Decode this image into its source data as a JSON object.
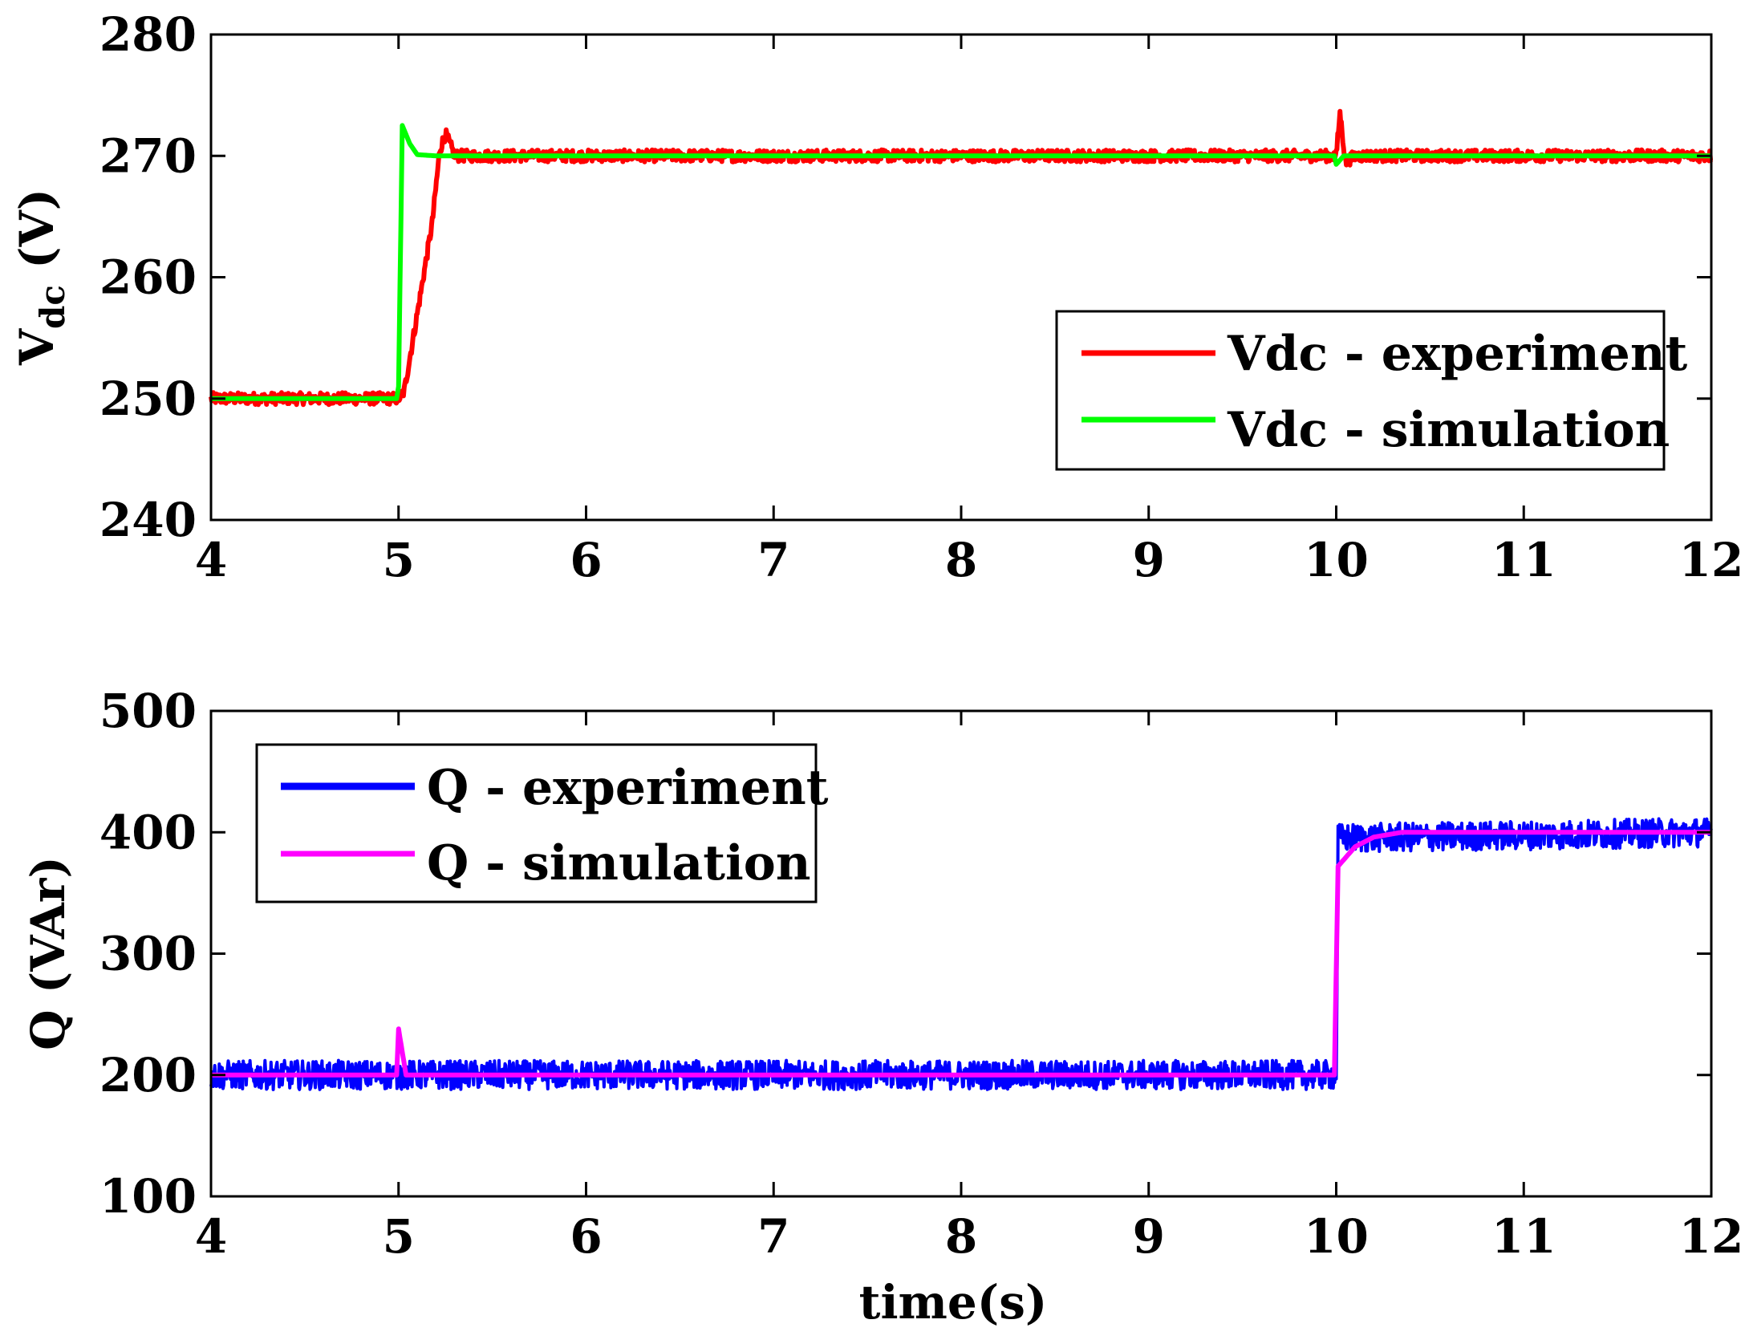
{
  "chart_data": [
    {
      "type": "line",
      "xlim": [
        4,
        12
      ],
      "ylim": [
        240,
        280
      ],
      "xticks": [
        4,
        5,
        6,
        7,
        8,
        9,
        10,
        11,
        12
      ],
      "yticks": [
        240,
        250,
        260,
        270,
        280
      ],
      "ylabel_main": "V",
      "ylabel_sub": "dc",
      "ylabel_unit": " (V)",
      "xlabel": "",
      "legend_position": "center-right",
      "series": [
        {
          "name": "Vdc - experiment",
          "color": "#ff0000",
          "noise": 0.5,
          "points": [
            [
              4,
              250
            ],
            [
              5.0,
              250
            ],
            [
              5.03,
              250.6
            ],
            [
              5.1,
              257
            ],
            [
              5.18,
              264.5
            ],
            [
              5.22,
              270.5
            ],
            [
              5.25,
              271.8
            ],
            [
              5.3,
              270
            ],
            [
              10.0,
              270
            ],
            [
              10.02,
              273.5
            ],
            [
              10.05,
              269.5
            ],
            [
              10.1,
              270
            ],
            [
              12,
              270
            ]
          ]
        },
        {
          "name": "Vdc - simulation",
          "color": "#00ff00",
          "noise": 0,
          "points": [
            [
              4,
              250
            ],
            [
              4.99,
              250
            ],
            [
              5.0,
              251
            ],
            [
              5.02,
              272.5
            ],
            [
              5.06,
              271
            ],
            [
              5.1,
              270.1
            ],
            [
              5.2,
              270
            ],
            [
              9.99,
              270
            ],
            [
              10.0,
              269.3
            ],
            [
              10.04,
              270
            ],
            [
              12,
              270
            ]
          ]
        }
      ]
    },
    {
      "type": "line",
      "xlim": [
        4,
        12
      ],
      "ylim": [
        100,
        500
      ],
      "xticks": [
        4,
        5,
        6,
        7,
        8,
        9,
        10,
        11,
        12
      ],
      "yticks": [
        100,
        200,
        300,
        400,
        500
      ],
      "ylabel": "Q (VAr)",
      "xlabel": "time(s)",
      "legend_position": "top-left",
      "series": [
        {
          "name": "Q - experiment",
          "color": "#0000ff",
          "noise": 12,
          "points": [
            [
              4,
              200
            ],
            [
              9.98,
              200
            ],
            [
              10.0,
              200
            ],
            [
              10.01,
              395
            ],
            [
              12,
              400
            ]
          ]
        },
        {
          "name": "Q - simulation",
          "color": "#ff00ff",
          "noise": 0,
          "points": [
            [
              4,
              200
            ],
            [
              4.99,
              200
            ],
            [
              5.0,
              238
            ],
            [
              5.04,
              200
            ],
            [
              9.99,
              200
            ],
            [
              10.01,
              372
            ],
            [
              10.1,
              388
            ],
            [
              10.2,
              396
            ],
            [
              10.35,
              400
            ],
            [
              12,
              400
            ]
          ]
        }
      ]
    }
  ]
}
